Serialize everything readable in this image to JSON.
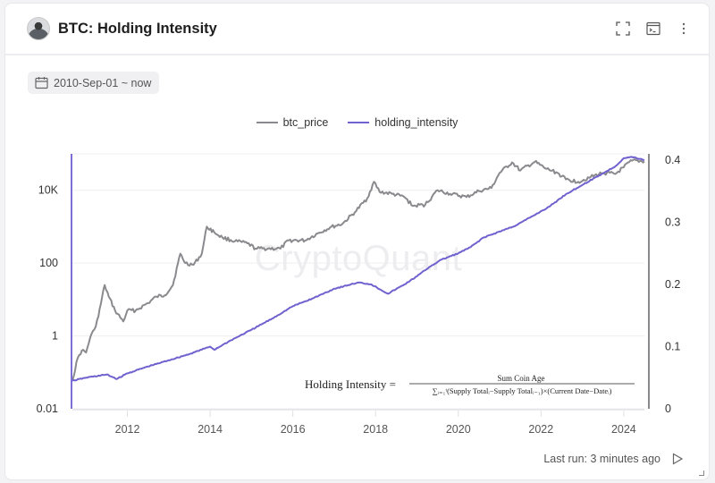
{
  "header": {
    "title": "BTC: Holding Intensity",
    "icons": [
      "fullscreen-icon",
      "console-icon",
      "more-vertical-icon"
    ]
  },
  "date_range": {
    "label": "2010-Sep-01 ~ now",
    "icon": "calendar-icon"
  },
  "footer": {
    "last_run": "Last run: 3 minutes ago",
    "run_icon": "play-icon"
  },
  "watermark": "CryptoQuant",
  "colors": {
    "btc_price": "#8a8a8e",
    "holding_intensity": "#6f62cf",
    "left_axis": "#7b6fd6",
    "right_axis": "#8a8a8e",
    "grid": "#efeff2"
  },
  "chart_data": {
    "type": "line",
    "title": "BTC: Holding Intensity",
    "legend": {
      "position": "top-center",
      "entries": [
        "btc_price",
        "holding_intensity"
      ]
    },
    "x_axis": {
      "ticks": [
        "2012",
        "2014",
        "2016",
        "2018",
        "2020",
        "2022",
        "2024"
      ],
      "range": [
        2010.67,
        2024.5
      ]
    },
    "y_left": {
      "scale": "log",
      "ticks": [
        "0.01",
        "1",
        "100",
        "10K"
      ],
      "tick_values": [
        0.01,
        1,
        100,
        10000
      ],
      "range": [
        0.01,
        100000
      ]
    },
    "y_right": {
      "scale": "linear",
      "ticks": [
        "0",
        "0.1",
        "0.2",
        "0.3",
        "0.4"
      ],
      "tick_values": [
        0,
        0.1,
        0.2,
        0.3,
        0.4
      ],
      "range": [
        0,
        0.41
      ]
    },
    "annotation": {
      "lhs": "Holding Intensity =",
      "numerator": "Sum Coin Age",
      "denominator": "∑ᵢ₌₁ᵗ(Supply Totalᵢ−Supply Totalᵢ₋₁)×(Current Date−Dateᵢ)"
    },
    "series": [
      {
        "name": "btc_price",
        "axis": "left",
        "x": [
          2010.67,
          2010.8,
          2010.9,
          2011.0,
          2011.1,
          2011.2,
          2011.3,
          2011.45,
          2011.55,
          2011.7,
          2011.9,
          2012.0,
          2012.2,
          2012.5,
          2012.7,
          2012.9,
          2013.1,
          2013.28,
          2013.4,
          2013.6,
          2013.8,
          2013.92,
          2014.1,
          2014.3,
          2014.6,
          2014.9,
          2015.1,
          2015.4,
          2015.7,
          2015.9,
          2016.3,
          2016.6,
          2016.9,
          2017.2,
          2017.5,
          2017.8,
          2017.96,
          2018.1,
          2018.4,
          2018.7,
          2018.9,
          2019.2,
          2019.5,
          2019.8,
          2020.2,
          2020.5,
          2020.8,
          2021.0,
          2021.3,
          2021.5,
          2021.85,
          2022.1,
          2022.4,
          2022.6,
          2022.9,
          2023.2,
          2023.5,
          2023.8,
          2024.0,
          2024.2,
          2024.5
        ],
        "y": [
          0.06,
          0.25,
          0.4,
          0.35,
          0.9,
          1.5,
          3.5,
          25,
          12,
          5,
          2.5,
          5,
          5,
          8,
          12,
          13,
          25,
          180,
          100,
          90,
          180,
          1000,
          700,
          500,
          400,
          350,
          250,
          250,
          250,
          420,
          420,
          650,
          950,
          1200,
          2500,
          6000,
          17000,
          9000,
          8000,
          6500,
          3700,
          4000,
          10000,
          8000,
          6500,
          9500,
          11500,
          30000,
          58000,
          35000,
          60000,
          40000,
          30000,
          20000,
          17000,
          23000,
          30000,
          28000,
          43000,
          65000,
          62000
        ]
      },
      {
        "name": "holding_intensity",
        "axis": "right",
        "x": [
          2010.67,
          2011.0,
          2011.5,
          2011.75,
          2012.0,
          2012.5,
          2013.0,
          2013.5,
          2014.0,
          2014.1,
          2014.5,
          2015.0,
          2015.5,
          2016.0,
          2016.5,
          2017.0,
          2017.4,
          2017.6,
          2017.9,
          2018.3,
          2018.7,
          2019.0,
          2019.3,
          2019.6,
          2020.0,
          2020.3,
          2020.6,
          2021.0,
          2021.4,
          2021.8,
          2022.2,
          2022.6,
          2023.0,
          2023.4,
          2023.8,
          2024.0,
          2024.2,
          2024.5
        ],
        "y": [
          0.045,
          0.05,
          0.055,
          0.048,
          0.057,
          0.068,
          0.078,
          0.088,
          0.1,
          0.095,
          0.11,
          0.127,
          0.145,
          0.165,
          0.178,
          0.193,
          0.2,
          0.203,
          0.2,
          0.185,
          0.2,
          0.213,
          0.228,
          0.24,
          0.25,
          0.26,
          0.275,
          0.285,
          0.295,
          0.31,
          0.325,
          0.345,
          0.36,
          0.375,
          0.39,
          0.403,
          0.405,
          0.4
        ]
      }
    ]
  }
}
